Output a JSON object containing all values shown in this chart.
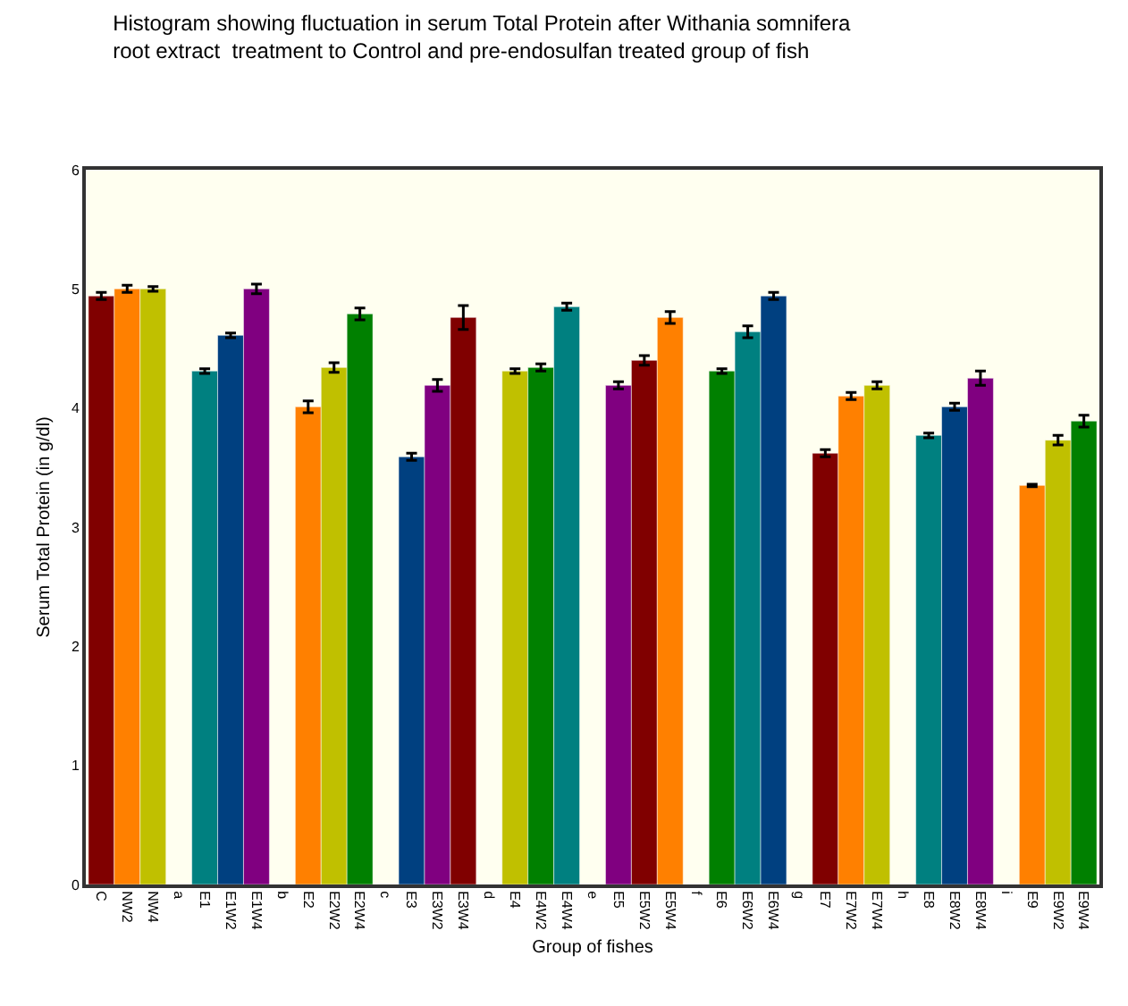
{
  "chart_data": {
    "type": "bar",
    "title": "Histogram showing fluctuation in serum Total Protein after Withania somnifera\nroot extract  treatment to Control and pre-endosulfan treated group of fish",
    "xlabel": "Group of fishes",
    "ylabel": "Serum Total Protein (in g/dl)",
    "categories": [
      "C",
      "NW2",
      "NW4",
      "a",
      "E1",
      "E1W2",
      "E1W4",
      "b",
      "E2",
      "E2W2",
      "E2W4",
      "c",
      "E3",
      "E3W2",
      "E3W4",
      "d",
      "E4",
      "E4W2",
      "E4W4",
      "e",
      "E5",
      "E5W2",
      "E5W4",
      "f",
      "E6",
      "E6W2",
      "E6W4",
      "g",
      "E7",
      "E7W2",
      "E7W4",
      "h",
      "E8",
      "E8W2",
      "E8W4",
      "i",
      "E9",
      "E9W2",
      "E9W4"
    ],
    "values": [
      4.94,
      5.0,
      5.0,
      null,
      4.31,
      4.61,
      5.0,
      null,
      4.01,
      4.34,
      4.79,
      null,
      3.59,
      4.19,
      4.76,
      null,
      4.31,
      4.34,
      4.85,
      null,
      4.19,
      4.4,
      4.76,
      null,
      4.31,
      4.64,
      4.94,
      null,
      3.62,
      4.1,
      4.19,
      null,
      3.77,
      4.01,
      4.25,
      null,
      3.35,
      3.73,
      3.89
    ],
    "errors": [
      0.03,
      0.03,
      0.02,
      null,
      0.02,
      0.02,
      0.04,
      null,
      0.05,
      0.04,
      0.05,
      null,
      0.03,
      0.05,
      0.1,
      null,
      0.02,
      0.03,
      0.03,
      null,
      0.03,
      0.04,
      0.05,
      null,
      0.02,
      0.05,
      0.03,
      null,
      0.03,
      0.03,
      0.03,
      null,
      0.02,
      0.03,
      0.06,
      null,
      0.01,
      0.04,
      0.05
    ],
    "colors": [
      "#800000",
      "#ff8000",
      "#c0c000",
      null,
      "#008080",
      "#004080",
      "#800080",
      null,
      "#ff8000",
      "#c0c000",
      "#008000",
      null,
      "#004080",
      "#800080",
      "#800000",
      null,
      "#c0c000",
      "#008000",
      "#008080",
      null,
      "#800080",
      "#800000",
      "#ff8000",
      null,
      "#008000",
      "#008080",
      "#004080",
      null,
      "#800000",
      "#ff8000",
      "#c0c000",
      null,
      "#008080",
      "#004080",
      "#800080",
      null,
      "#ff8000",
      "#c0c000",
      "#008000"
    ],
    "ylim": [
      0,
      6
    ],
    "yticks": [
      0,
      1,
      2,
      3,
      4,
      5,
      6
    ],
    "grid": false
  }
}
